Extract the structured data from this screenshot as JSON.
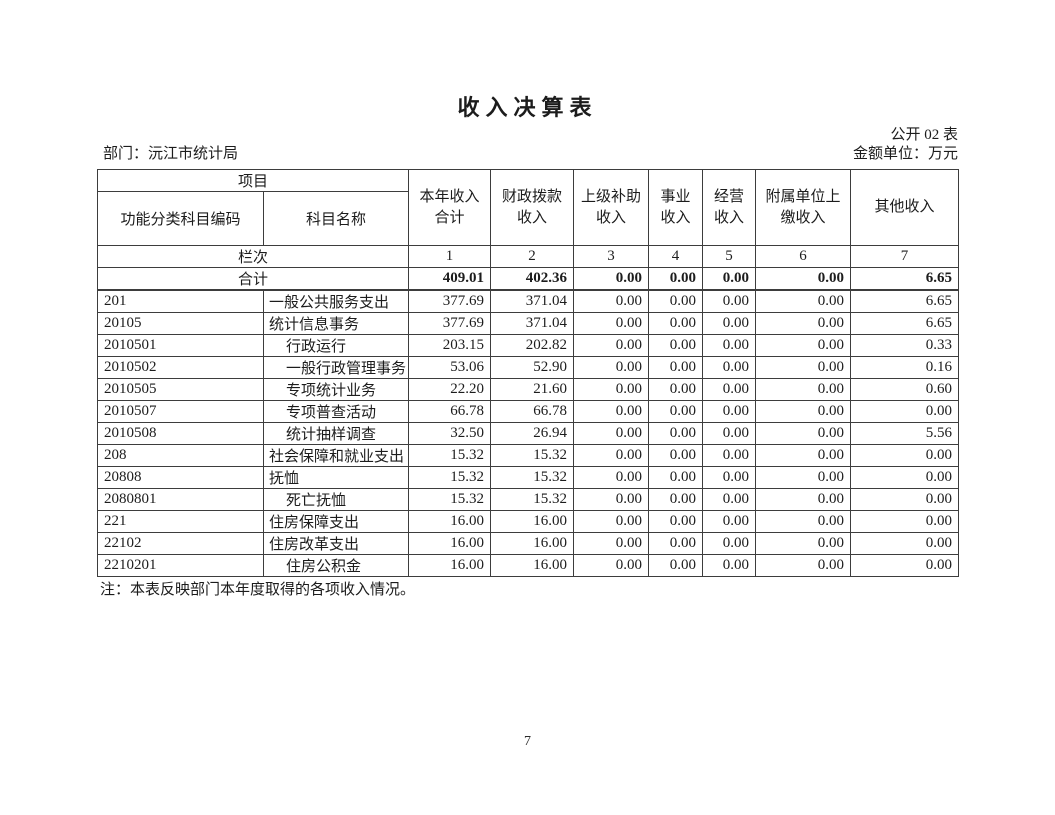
{
  "header": {
    "title": "收入决算表",
    "table_code": "公开 02 表",
    "department_label": "部门：沅江市统计局",
    "unit_label": "金额单位：万元"
  },
  "table": {
    "project_header": "项目",
    "code_header": "功能分类科目编码",
    "name_header": "科目名称",
    "column_headers": [
      "本年收入\n合计",
      "财政拨款\n收入",
      "上级补助\n收入",
      "事业\n收入",
      "经营\n收入",
      "附属单位上\n缴收入",
      "其他收入"
    ],
    "lan_label": "栏次",
    "lan_numbers": [
      "1",
      "2",
      "3",
      "4",
      "5",
      "6",
      "7"
    ],
    "total_label": "合计",
    "total_values": [
      "409.01",
      "402.36",
      "0.00",
      "0.00",
      "0.00",
      "0.00",
      "6.65"
    ],
    "rows": [
      {
        "code": "201",
        "name": "一般公共服务支出",
        "level": 1,
        "values": [
          "377.69",
          "371.04",
          "0.00",
          "0.00",
          "0.00",
          "0.00",
          "6.65"
        ]
      },
      {
        "code": "20105",
        "name": "统计信息事务",
        "level": 2,
        "values": [
          "377.69",
          "371.04",
          "0.00",
          "0.00",
          "0.00",
          "0.00",
          "6.65"
        ]
      },
      {
        "code": "2010501",
        "name": "行政运行",
        "level": 3,
        "values": [
          "203.15",
          "202.82",
          "0.00",
          "0.00",
          "0.00",
          "0.00",
          "0.33"
        ]
      },
      {
        "code": "2010502",
        "name": "一般行政管理事务",
        "level": 3,
        "values": [
          "53.06",
          "52.90",
          "0.00",
          "0.00",
          "0.00",
          "0.00",
          "0.16"
        ]
      },
      {
        "code": "2010505",
        "name": "专项统计业务",
        "level": 3,
        "values": [
          "22.20",
          "21.60",
          "0.00",
          "0.00",
          "0.00",
          "0.00",
          "0.60"
        ]
      },
      {
        "code": "2010507",
        "name": "专项普查活动",
        "level": 3,
        "values": [
          "66.78",
          "66.78",
          "0.00",
          "0.00",
          "0.00",
          "0.00",
          "0.00"
        ]
      },
      {
        "code": "2010508",
        "name": "统计抽样调查",
        "level": 3,
        "values": [
          "32.50",
          "26.94",
          "0.00",
          "0.00",
          "0.00",
          "0.00",
          "5.56"
        ]
      },
      {
        "code": "208",
        "name": "社会保障和就业支出",
        "level": 1,
        "values": [
          "15.32",
          "15.32",
          "0.00",
          "0.00",
          "0.00",
          "0.00",
          "0.00"
        ]
      },
      {
        "code": "20808",
        "name": "抚恤",
        "level": 2,
        "values": [
          "15.32",
          "15.32",
          "0.00",
          "0.00",
          "0.00",
          "0.00",
          "0.00"
        ]
      },
      {
        "code": "2080801",
        "name": "死亡抚恤",
        "level": 3,
        "values": [
          "15.32",
          "15.32",
          "0.00",
          "0.00",
          "0.00",
          "0.00",
          "0.00"
        ]
      },
      {
        "code": "221",
        "name": "住房保障支出",
        "level": 1,
        "values": [
          "16.00",
          "16.00",
          "0.00",
          "0.00",
          "0.00",
          "0.00",
          "0.00"
        ]
      },
      {
        "code": "22102",
        "name": "住房改革支出",
        "level": 2,
        "values": [
          "16.00",
          "16.00",
          "0.00",
          "0.00",
          "0.00",
          "0.00",
          "0.00"
        ]
      },
      {
        "code": "2210201",
        "name": "住房公积金",
        "level": 3,
        "values": [
          "16.00",
          "16.00",
          "0.00",
          "0.00",
          "0.00",
          "0.00",
          "0.00"
        ]
      }
    ],
    "note": "注：本表反映部门本年度取得的各项收入情况。"
  },
  "page": {
    "number": "7"
  }
}
